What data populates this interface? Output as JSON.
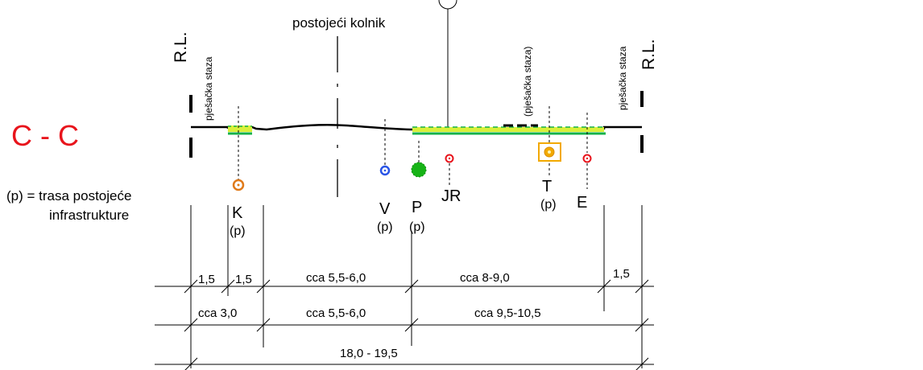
{
  "section": {
    "title": "C - C",
    "title_color": "#e8141c",
    "legend_line1": "(p) = trasa postojeće",
    "legend_line2": "infrastrukture"
  },
  "labels": {
    "road": "postojeći kolnik",
    "rl": "R.L.",
    "sidewalk": "pješačka staza",
    "sidewalk_planned": "(pješačka staza)"
  },
  "utilities": [
    {
      "code": "K",
      "note": "(p)",
      "color": "#e07a1a",
      "symbol": "circle"
    },
    {
      "code": "V",
      "note": "(p)",
      "color": "#2a55e6",
      "symbol": "circle"
    },
    {
      "code": "P",
      "note": "(p)",
      "color": "#17b317",
      "symbol": "filled-circle"
    },
    {
      "code": "JR",
      "note": "",
      "color": "#e8141c",
      "symbol": "circle"
    },
    {
      "code": "T",
      "note": "(p)",
      "color": "#f2a900",
      "symbol": "circle-in-square"
    },
    {
      "code": "E",
      "note": "",
      "color": "#e8141c",
      "symbol": "circle"
    }
  ],
  "dimensions": {
    "row1": [
      "1,5",
      "1,5",
      "cca 5,5-6,0",
      "cca 8-9,0",
      "1,5"
    ],
    "row2": [
      "cca 3,0",
      "cca 5,5-6,0",
      "cca 9,5-10,5"
    ],
    "row3": [
      "18,0 - 19,5"
    ]
  },
  "colors": {
    "sidewalk_fill": "#d9f03a",
    "sidewalk_line": "#15b24a"
  }
}
